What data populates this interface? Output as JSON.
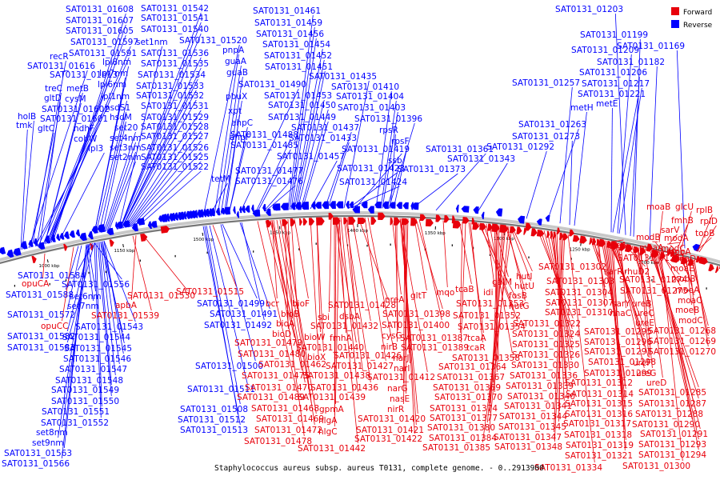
{
  "legend": [
    {
      "label": "Forward",
      "color": "#e8000b"
    },
    {
      "label": "Reverse",
      "color": "#0000ff"
    }
  ],
  "caption": "Staphylococcus aureus subsp. aureus T0131, complete genome. - 0..2913900",
  "colors": {
    "forward": "#e8000b",
    "reverse": "#0000ff",
    "backbone": "#777777"
  },
  "ticks": [
    "1000 kbp",
    "1050 kbp",
    "1100 kbp",
    "1150 kbp",
    "1200 kbp",
    "1250 kbp",
    "1300 kbp",
    "1350 kbp",
    "1400 kbp",
    "1450 kbp",
    "1500 kbp"
  ],
  "reverse_labels": [
    "SAT0131_01608",
    "SAT0131_01607",
    "SAT0131_01605",
    "SAT0131_01597",
    "SAT0131_01591",
    "recR",
    "SAT0131_01616",
    "SAT0131_01613",
    "treC",
    "metB",
    "gltD",
    "cysM",
    "SAT0131_01602",
    "holB",
    "SAT0131_01601",
    "tmk",
    "gltC",
    "ndhF",
    "cobW",
    "lpl3",
    "SAT0131_01542",
    "SAT0131_01541",
    "SAT0131_01540",
    "set1nm",
    "SAT0131_01536",
    "lpl8nm",
    "SAT0131_01535",
    "lpl7nm",
    "SAT0131_01534",
    "lpl6nm",
    "SAT0131_01533",
    "lpl1nm",
    "SAT0131_01532",
    "hsdS1",
    "SAT0131_01531",
    "hsdM",
    "SAT0131_01529",
    "set20",
    "SAT0131_01528",
    "set4nm",
    "SAT0131_01527",
    "set3nm",
    "SAT0131_01526",
    "set2nm",
    "SAT0131_01525",
    "SAT0131_01522",
    "SAT0131_01520",
    "pnpA",
    "guaA",
    "guaB",
    "SAT0131_01490",
    "pbuX",
    "xpt",
    "ahpC",
    "ahpF",
    "tetM",
    "SAT0131_01488",
    "SAT0131_01485",
    "SAT0131_01477",
    "SAT0131_01476",
    "SAT0131_01461",
    "SAT0131_01459",
    "SAT0131_01456",
    "SAT0131_01454",
    "SAT0131_01452",
    "SAT0131_01451",
    "SAT0131_01435",
    "SAT0131_01453",
    "SAT0131_01450",
    "SAT0131_01449",
    "SAT0131_01437",
    "SAT0131_01433",
    "SAT0131_01457",
    "SAT0131_01410",
    "SAT0131_01404",
    "SAT0131_01403",
    "SAT0131_01396",
    "rpsR",
    "rpsF",
    "SAT0131_01419",
    "ssb",
    "SAT0131_01423",
    "SAT0131_01424",
    "SAT0131_01373",
    "SAT0131_01361",
    "SAT0131_01343",
    "SAT0131_01292",
    "SAT0131_01273",
    "SAT0131_01263",
    "SAT0131_01257",
    "metH",
    "metE",
    "SAT0131_01221",
    "SAT0131_01217",
    "SAT0131_01206",
    "SAT0131_01182",
    "SAT0131_01209",
    "SAT0131_01169",
    "SAT0131_01199",
    "SAT0131_01203",
    "SAT0131_01584",
    "SAT0131_01556",
    "SAT0131_01588",
    "set6nm",
    "set7nm",
    "SAT0131_01572",
    "SAT0131_01543",
    "SAT0131_01582",
    "SAT0131_01544",
    "SAT0131_01583",
    "SAT0131_01545",
    "SAT0131_01546",
    "SAT0131_01547",
    "SAT0131_01548",
    "SAT0131_01549",
    "SAT0131_01550",
    "SAT0131_01551",
    "SAT0131_01552",
    "set8nm",
    "set9nm",
    "SAT0131_01563",
    "SAT0131_01566",
    "SAT0131_01499",
    "SAT0131_01491",
    "SAT0131_01492",
    "SAT0131_01500",
    "SAT0131_01511",
    "SAT0131_01508",
    "SAT0131_01512",
    "SAT0131_01513"
  ],
  "forward_labels": [
    "opuCA",
    "opuCC",
    "SAT0131_01530",
    "apbA",
    "SAT0131_01539",
    "SAT0131_01515",
    "bcr",
    "bioF",
    "bioB",
    "bioA",
    "bioD",
    "SAT0131_01479",
    "SAT0131_01480",
    "SAT0131_01475",
    "SAT0131_01470",
    "SAT0131_01489",
    "SAT0131_01468",
    "SAT0131_01469",
    "SAT0131_01472",
    "SAT0131_01478",
    "SAT0131_01428",
    "sbi",
    "dsbA",
    "SAT0131_01432",
    "bioW",
    "fmhA",
    "SAT0131_01440",
    "bioX",
    "SAT0131_01462",
    "SAT0131_01426",
    "SAT0131_01427",
    "SAT0131_01438",
    "SAT0131_01436",
    "SAT0131_01439",
    "gpmA",
    "hlgA",
    "hlgC",
    "SAT0131_01442",
    "nreA",
    "gltT",
    "SAT0131_01398",
    "SAT0131_01400",
    "cysG",
    "nirB",
    "narJ",
    "narI",
    "narG",
    "nasE",
    "nirR",
    "SAT0131_01412",
    "SAT0131_01420",
    "SAT0131_01421",
    "SAT0131_01422",
    "mqo",
    "tcaB",
    "SAT0131_01387",
    "SAT0131_01389",
    "tcaA",
    "tcaR",
    "SAT0131_01353",
    "SAT0131_01352",
    "SAT0131_01354",
    "idi",
    "galM",
    "fosB",
    "hutG",
    "hutI",
    "hutU",
    "SAT0131_01322",
    "SAT0131_01324",
    "SAT0131_01325",
    "SAT0131_01326",
    "SAT0131_01358",
    "SAT0131_01364",
    "SAT0131_01367",
    "SAT0131_01369",
    "SAT0131_01370",
    "SAT0131_01374",
    "SAT0131_01377",
    "SAT0131_01380",
    "SAT0131_01384",
    "SAT0131_01385",
    "SAT0131_01330",
    "SAT0131_01336",
    "SAT0131_01339",
    "SAT0131_01340",
    "SAT0131_01341",
    "SAT0131_01344",
    "SAT0131_01345",
    "SAT0131_01347",
    "SAT0131_01348",
    "SAT0131_01334",
    "SAT0131_01302",
    "SAT0131_01303",
    "SAT0131_01304",
    "SAT0131_01307",
    "SAT0131_01310",
    "sarR",
    "rhuD2",
    "sarY",
    "nhaC",
    "ureA",
    "ureB",
    "ureC",
    "ureE",
    "ureF",
    "ureG",
    "ureD",
    "SAT0131_01295",
    "SAT0131_01296",
    "SAT0131_01297",
    "SAT0131_01298",
    "SAT0131_01299",
    "SAT0131_01312",
    "SAT0131_01314",
    "SAT0131_01315",
    "SAT0131_01316",
    "SAT0131_01317",
    "SAT0131_01318",
    "SAT0131_01319",
    "SAT0131_01321",
    "SAT0131_01285",
    "SAT0131_01287",
    "SAT0131_01288",
    "SAT0131_01290",
    "SAT0131_01291",
    "SAT0131_01293",
    "SAT0131_01294",
    "SAT0131_01300",
    "glcU",
    "rplB",
    "fmhB",
    "rplD",
    "sarV",
    "topB",
    "moaB",
    "modB",
    "modA",
    "moaA",
    "modC",
    "moaD",
    "SAT0131_01271",
    "moaE",
    "SAT0131_01274",
    "mobB",
    "moeA",
    "SAT0131_01275",
    "moaC",
    "moeB",
    "mobA",
    "modC",
    "SAT0131_01268",
    "SAT0131_01269",
    "SAT0131_01270"
  ]
}
